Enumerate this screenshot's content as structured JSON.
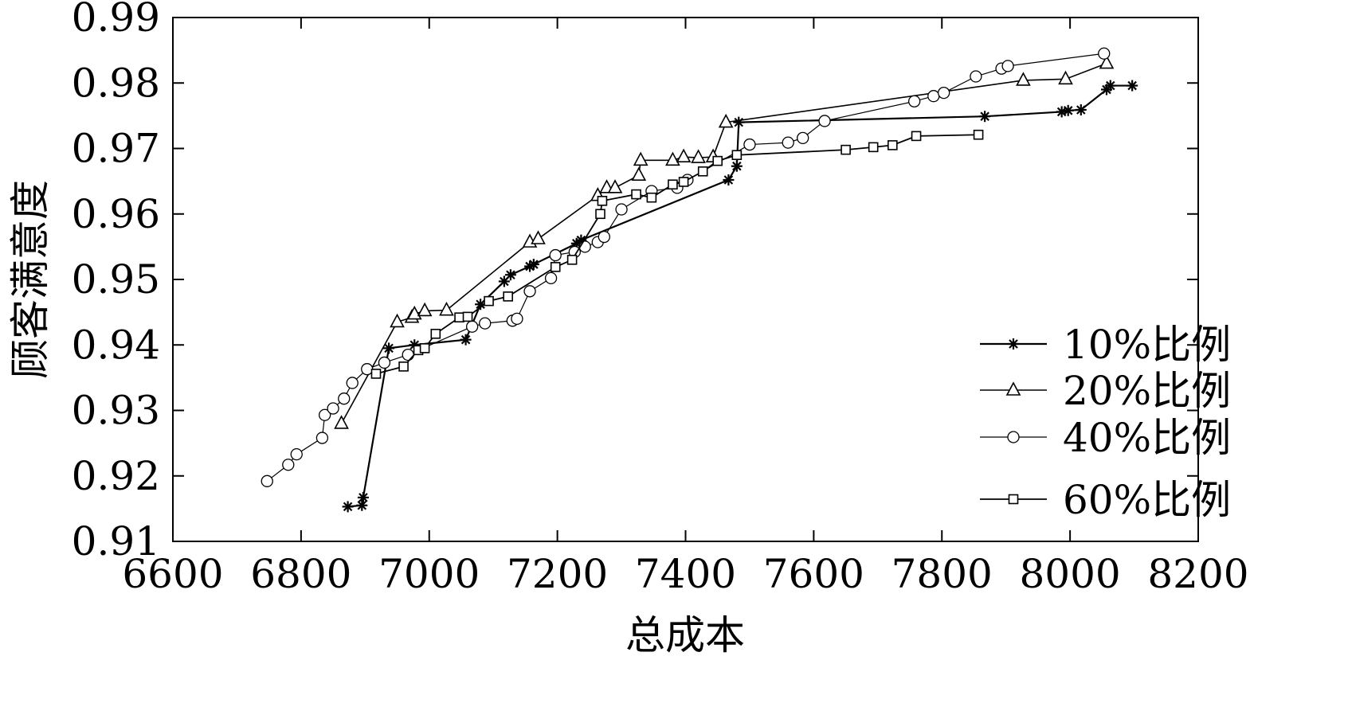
{
  "chart_data": {
    "type": "line",
    "xlabel": "总成本",
    "ylabel": "顾客满意度",
    "xlim": [
      6600,
      8200
    ],
    "ylim": [
      0.91,
      0.99
    ],
    "xticks": [
      6600,
      6800,
      7000,
      7200,
      7400,
      7600,
      7800,
      8000,
      8200
    ],
    "xtick_labels": [
      "6600",
      "6800",
      "7000",
      "7200",
      "7400",
      "7600",
      "7800",
      "8000",
      "8200"
    ],
    "yticks": [
      0.91,
      0.92,
      0.93,
      0.94,
      0.95,
      0.96,
      0.97,
      0.98,
      0.99
    ],
    "ytick_labels": [
      "0.91",
      "0.92",
      "0.93",
      "0.94",
      "0.95",
      "0.96",
      "0.97",
      "0.98",
      "0.99"
    ],
    "grid": false,
    "legend_position": "bottom-right",
    "series": [
      {
        "name": "10%比例",
        "marker": "star",
        "points": [
          [
            6873,
            0.9153
          ],
          [
            6895,
            0.9155
          ],
          [
            6897,
            0.9167
          ],
          [
            6937,
            0.9395
          ],
          [
            6977,
            0.94
          ],
          [
            7057,
            0.9408
          ],
          [
            7080,
            0.9462
          ],
          [
            7117,
            0.9497
          ],
          [
            7127,
            0.9507
          ],
          [
            7157,
            0.952
          ],
          [
            7163,
            0.9523
          ],
          [
            7230,
            0.9555
          ],
          [
            7237,
            0.956
          ],
          [
            7467,
            0.9652
          ],
          [
            7480,
            0.9673
          ],
          [
            7483,
            0.974
          ],
          [
            7867,
            0.9749
          ],
          [
            7987,
            0.9756
          ],
          [
            7997,
            0.9758
          ],
          [
            8017,
            0.9759
          ],
          [
            8057,
            0.979
          ],
          [
            8063,
            0.9796
          ],
          [
            8097,
            0.9796
          ]
        ]
      },
      {
        "name": "20%比例",
        "marker": "triangle",
        "points": [
          [
            6863,
            0.928
          ],
          [
            6950,
            0.9435
          ],
          [
            6973,
            0.9442
          ],
          [
            6977,
            0.9447
          ],
          [
            6993,
            0.9452
          ],
          [
            7027,
            0.9453
          ],
          [
            7157,
            0.9557
          ],
          [
            7170,
            0.9562
          ],
          [
            7263,
            0.9628
          ],
          [
            7277,
            0.964
          ],
          [
            7290,
            0.964
          ],
          [
            7327,
            0.9659
          ],
          [
            7330,
            0.9682
          ],
          [
            7380,
            0.9682
          ],
          [
            7397,
            0.9687
          ],
          [
            7420,
            0.9686
          ],
          [
            7443,
            0.9687
          ],
          [
            7463,
            0.974
          ],
          [
            7927,
            0.9804
          ],
          [
            7993,
            0.9806
          ],
          [
            8057,
            0.983
          ]
        ]
      },
      {
        "name": "40%比例",
        "marker": "circle",
        "points": [
          [
            6747,
            0.9192
          ],
          [
            6780,
            0.9217
          ],
          [
            6793,
            0.9233
          ],
          [
            6833,
            0.9258
          ],
          [
            6837,
            0.9293
          ],
          [
            6850,
            0.9303
          ],
          [
            6867,
            0.9318
          ],
          [
            6880,
            0.9342
          ],
          [
            6903,
            0.9363
          ],
          [
            6930,
            0.9373
          ],
          [
            6967,
            0.9385
          ],
          [
            7067,
            0.9428
          ],
          [
            7087,
            0.9433
          ],
          [
            7130,
            0.9437
          ],
          [
            7137,
            0.944
          ],
          [
            7157,
            0.9482
          ],
          [
            7190,
            0.9502
          ],
          [
            7197,
            0.9537
          ],
          [
            7227,
            0.9542
          ],
          [
            7243,
            0.955
          ],
          [
            7263,
            0.9557
          ],
          [
            7273,
            0.9565
          ],
          [
            7300,
            0.9607
          ],
          [
            7347,
            0.9635
          ],
          [
            7387,
            0.964
          ],
          [
            7403,
            0.9652
          ],
          [
            7500,
            0.9706
          ],
          [
            7560,
            0.9709
          ],
          [
            7583,
            0.9716
          ],
          [
            7617,
            0.9742
          ],
          [
            7757,
            0.9772
          ],
          [
            7787,
            0.978
          ],
          [
            7803,
            0.9785
          ],
          [
            7853,
            0.981
          ],
          [
            7893,
            0.9822
          ],
          [
            7903,
            0.9826
          ],
          [
            8053,
            0.9845
          ]
        ]
      },
      {
        "name": "60%比例",
        "marker": "square",
        "points": [
          [
            6917,
            0.9356
          ],
          [
            6960,
            0.9367
          ],
          [
            6983,
            0.9392
          ],
          [
            6993,
            0.9395
          ],
          [
            7010,
            0.9417
          ],
          [
            7047,
            0.9442
          ],
          [
            7060,
            0.9443
          ],
          [
            7093,
            0.9467
          ],
          [
            7123,
            0.9474
          ],
          [
            7197,
            0.9519
          ],
          [
            7223,
            0.953
          ],
          [
            7267,
            0.96
          ],
          [
            7270,
            0.962
          ],
          [
            7323,
            0.963
          ],
          [
            7347,
            0.9625
          ],
          [
            7380,
            0.9645
          ],
          [
            7397,
            0.9649
          ],
          [
            7427,
            0.9665
          ],
          [
            7450,
            0.9681
          ],
          [
            7480,
            0.969
          ],
          [
            7650,
            0.9698
          ],
          [
            7693,
            0.9702
          ],
          [
            7723,
            0.9705
          ],
          [
            7760,
            0.9719
          ],
          [
            7857,
            0.9721
          ]
        ]
      }
    ]
  }
}
